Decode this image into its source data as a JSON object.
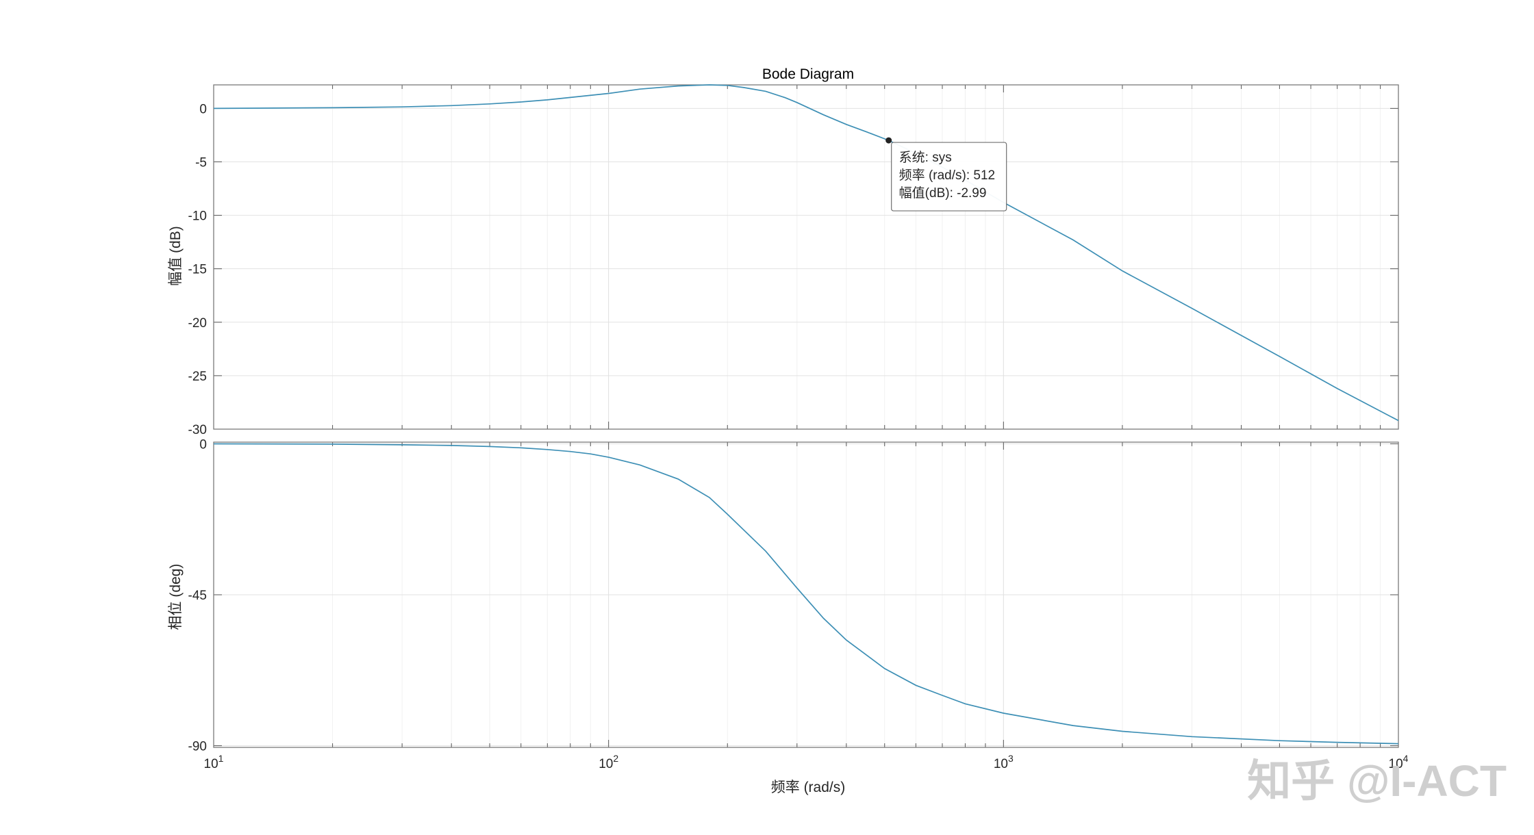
{
  "chart_data": {
    "type": "line",
    "title": "Bode Diagram",
    "xlabel": "频率  (rad/s)",
    "x_scale": "log",
    "xlim": [
      10,
      10000
    ],
    "x_tick_labels": [
      {
        "base": "10",
        "exp": "1"
      },
      {
        "base": "10",
        "exp": "2"
      },
      {
        "base": "10",
        "exp": "3"
      },
      {
        "base": "10",
        "exp": "4"
      }
    ],
    "grid": true,
    "line_color": "#3d8fb5",
    "subplots": [
      {
        "name": "magnitude",
        "ylabel": "幅值 (dB)",
        "ylim": [
          -30,
          2.2
        ],
        "y_ticks": [
          0,
          -5,
          -10,
          -15,
          -20,
          -25,
          -30
        ],
        "y_tick_labels": [
          "0",
          "-5",
          "-10",
          "-15",
          "-20",
          "-25",
          "-30"
        ],
        "series": [
          {
            "x": [
              10,
              20,
              30,
              40,
              50,
              60,
              70,
              80,
              100,
              120,
              150,
              180,
              200,
              220,
              250,
              280,
              300,
              350,
              400,
              450,
              512,
              600,
              700,
              800,
              1000,
              1500,
              2000,
              3000,
              5000,
              7000,
              10000
            ],
            "y": [
              0.0,
              0.06,
              0.14,
              0.26,
              0.42,
              0.6,
              0.8,
              1.02,
              1.4,
              1.8,
              2.1,
              2.2,
              2.15,
              1.95,
              1.6,
              1.0,
              0.55,
              -0.6,
              -1.5,
              -2.2,
              -2.99,
              -4.2,
              -5.5,
              -6.7,
              -8.8,
              -12.3,
              -15.2,
              -18.7,
              -23.2,
              -26.2,
              -29.2
            ]
          }
        ],
        "datatip": {
          "x": 512,
          "y": -2.99,
          "lines": [
            "系统: sys",
            "频率 (rad/s): 512",
            "幅值(dB): -2.99"
          ]
        }
      },
      {
        "name": "phase",
        "ylabel": "相位 (deg)",
        "ylim": [
          -90.5,
          0.5
        ],
        "y_ticks": [
          0,
          -45,
          -90
        ],
        "y_tick_labels": [
          "0",
          "-45",
          "-90"
        ],
        "series": [
          {
            "x": [
              10,
              20,
              30,
              40,
              50,
              60,
              70,
              80,
              90,
              100,
              120,
              150,
              180,
              200,
              250,
              300,
              350,
              400,
              500,
              600,
              700,
              800,
              1000,
              1500,
              2000,
              3000,
              5000,
              7000,
              10000
            ],
            "y": [
              0.0,
              -0.1,
              -0.3,
              -0.5,
              -0.8,
              -1.2,
              -1.7,
              -2.3,
              -3.0,
              -4.0,
              -6.3,
              -10.5,
              -16.0,
              -21.0,
              -32.0,
              -43.0,
              -52.0,
              -58.5,
              -67.0,
              -72.0,
              -75.0,
              -77.5,
              -80.3,
              -84.0,
              -85.7,
              -87.3,
              -88.5,
              -89.0,
              -89.4
            ]
          }
        ]
      }
    ]
  },
  "watermark": "知乎 @I-ACT"
}
